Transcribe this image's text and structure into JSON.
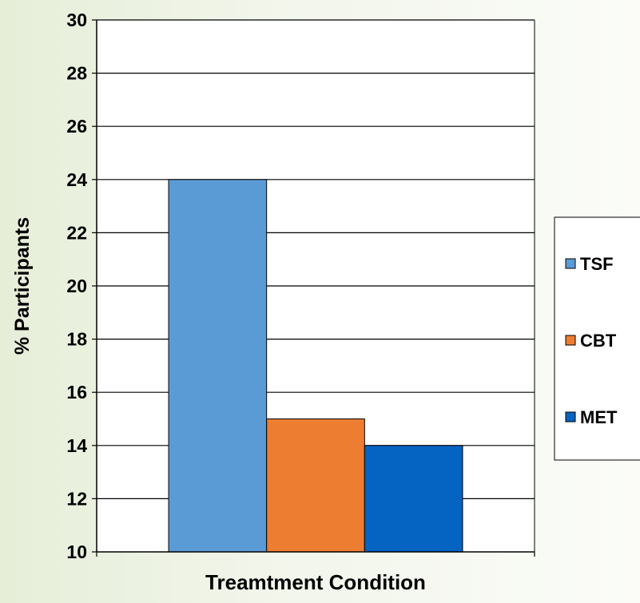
{
  "chart_data": {
    "type": "bar",
    "title": "",
    "xlabel": "Treamtment Condition",
    "ylabel": "% Participants",
    "ylim": [
      10,
      30
    ],
    "yticks": [
      10,
      12,
      14,
      16,
      18,
      20,
      22,
      24,
      26,
      28,
      30
    ],
    "grid": true,
    "legend_position": "right",
    "series": [
      {
        "name": "TSF",
        "values": [
          24
        ],
        "color": "#5b9bd5"
      },
      {
        "name": "CBT",
        "values": [
          15
        ],
        "color": "#ed7d31"
      },
      {
        "name": "MET",
        "values": [
          14
        ],
        "color": "#0563c1"
      }
    ]
  }
}
